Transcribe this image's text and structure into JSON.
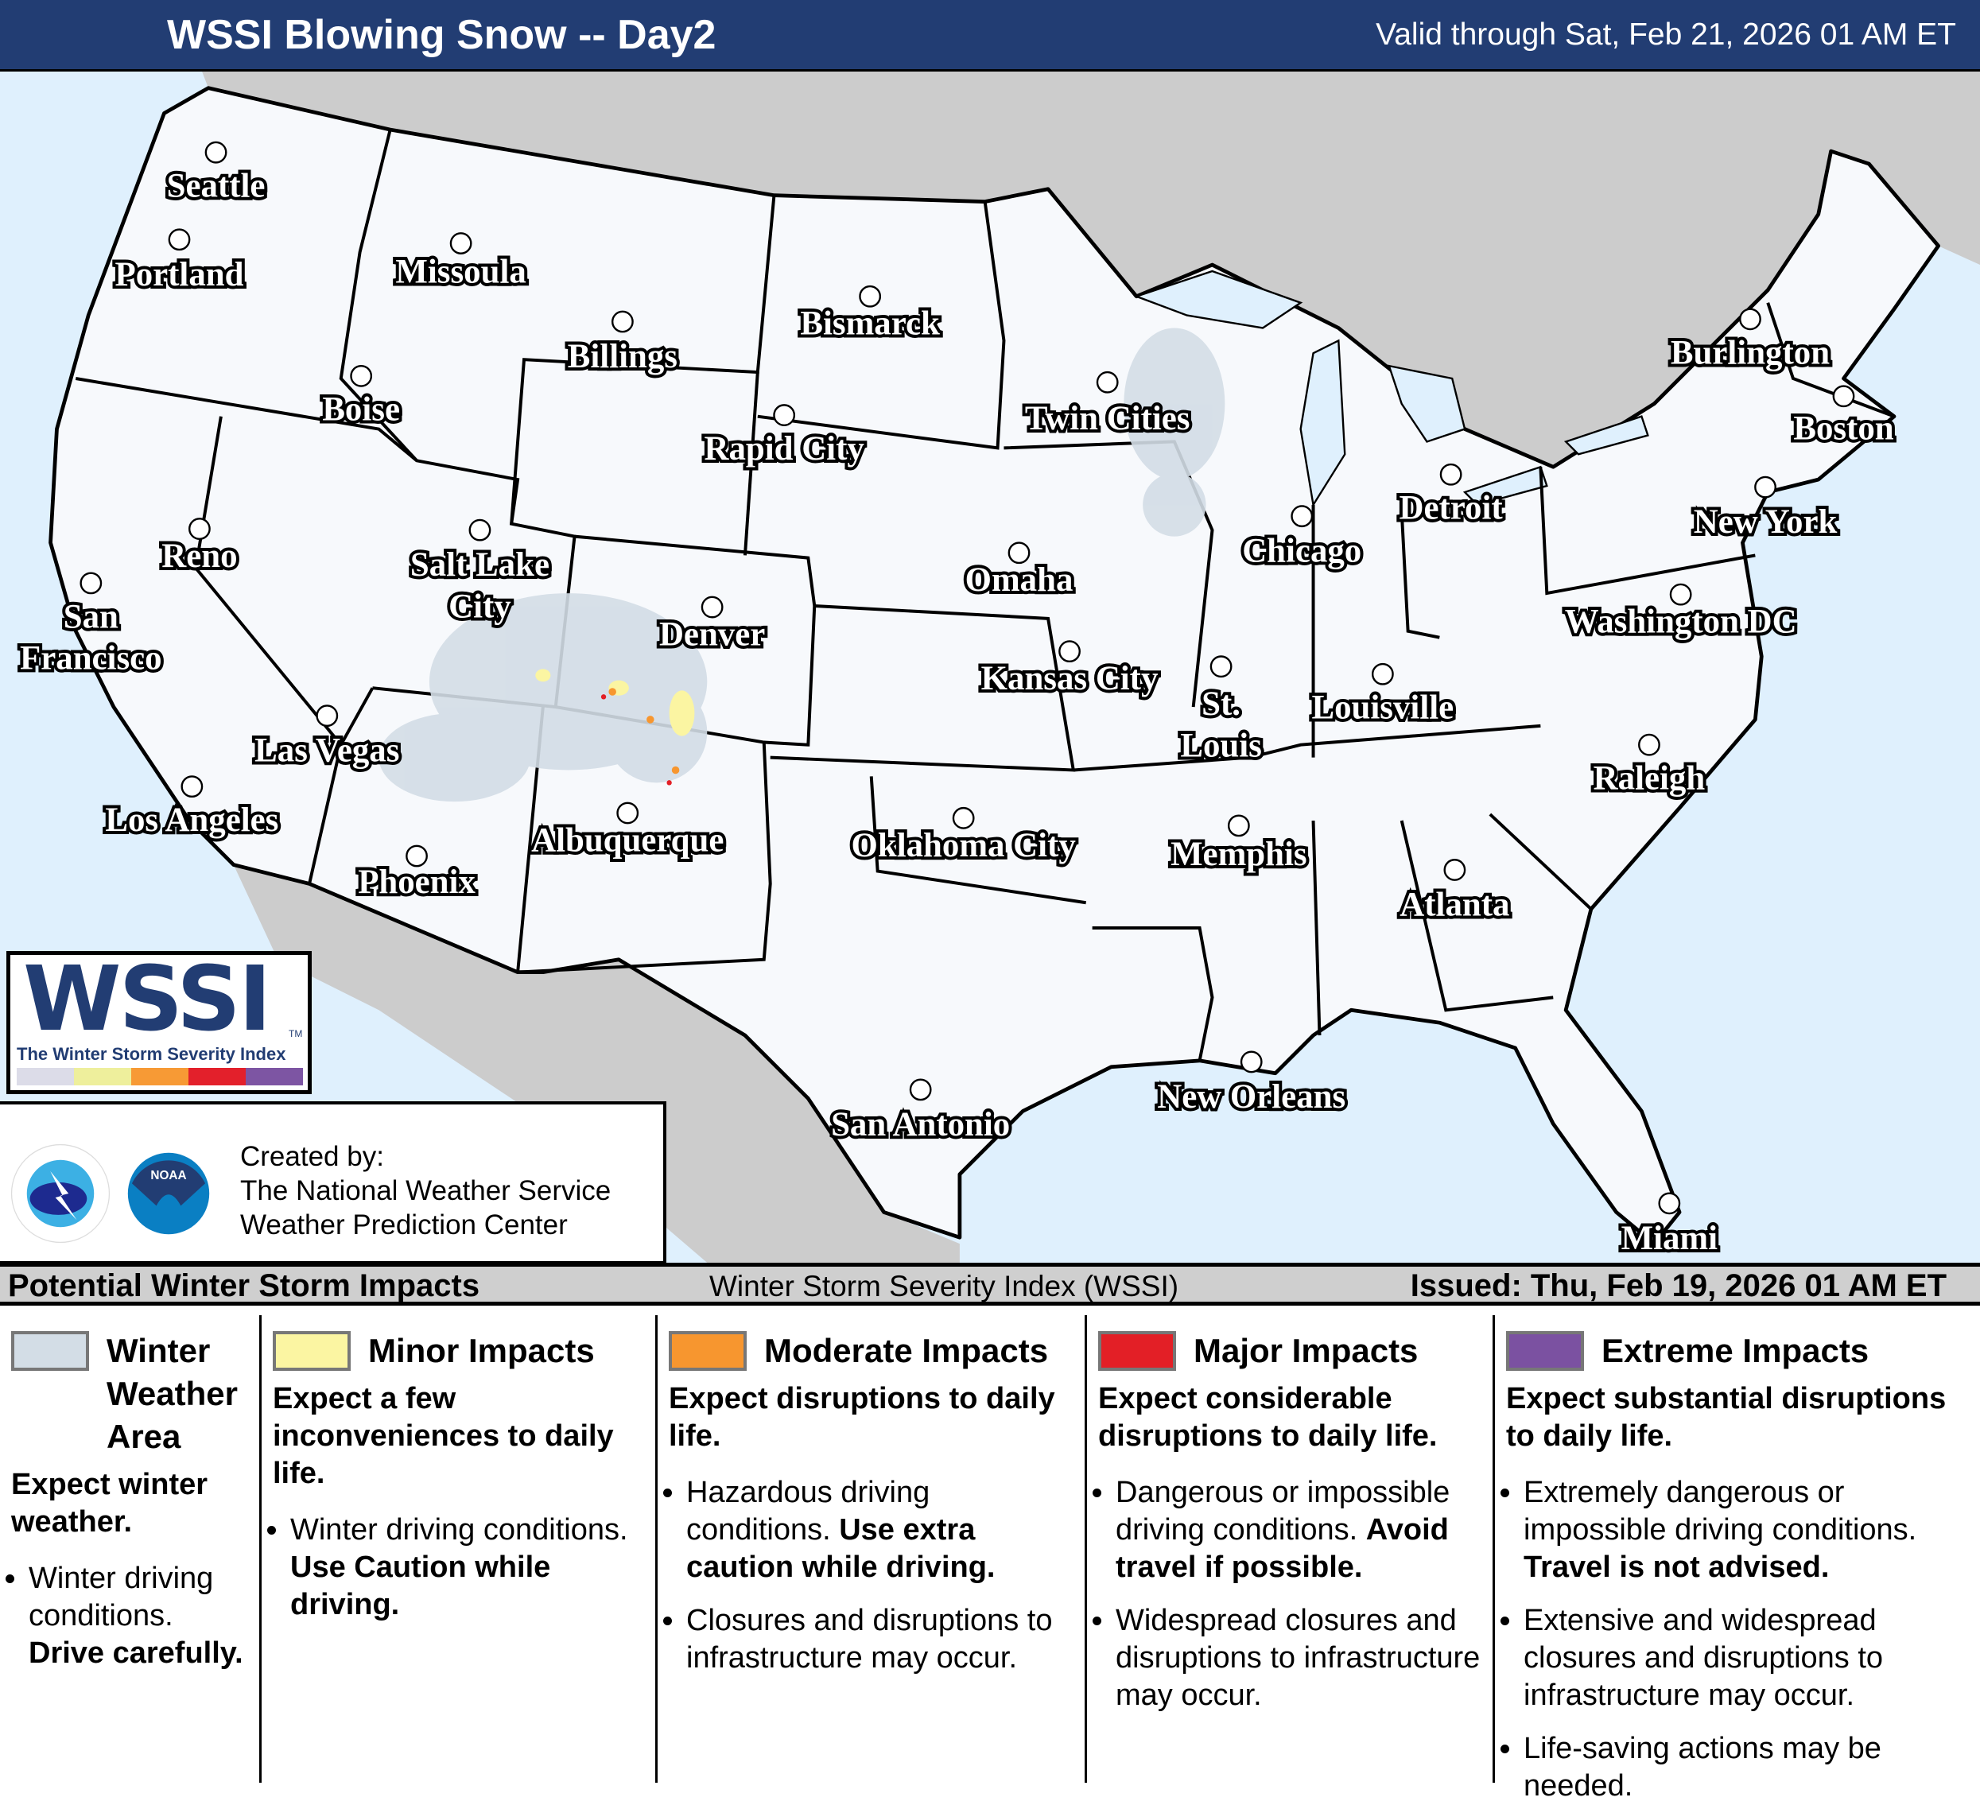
{
  "header": {
    "title": "WSSI Blowing Snow -- Day2",
    "valid": "Valid through Sat, Feb 21, 2026 01 AM ET"
  },
  "map": {
    "colors": {
      "water": "#dff0fd",
      "land_us": "#f7f9fc",
      "land_other": "#cccccc",
      "winter_area": "#d3dde6",
      "minor": "#fbf5a2",
      "moderate": "#f7962f",
      "major": "#e31f26",
      "extreme": "#7b51a1"
    },
    "cities": [
      {
        "name": "Seattle",
        "lines": [
          "Seattle"
        ]
      },
      {
        "name": "Portland",
        "lines": [
          "Portland"
        ]
      },
      {
        "name": "Missoula",
        "lines": [
          "Missoula"
        ]
      },
      {
        "name": "Billings",
        "lines": [
          "Billings"
        ]
      },
      {
        "name": "Bismarck",
        "lines": [
          "Bismarck"
        ]
      },
      {
        "name": "Boise",
        "lines": [
          "Boise"
        ]
      },
      {
        "name": "Rapid City",
        "lines": [
          "Rapid City"
        ]
      },
      {
        "name": "Twin Cities",
        "lines": [
          "Twin Cities"
        ]
      },
      {
        "name": "Burlington",
        "lines": [
          "Burlington"
        ]
      },
      {
        "name": "Boston",
        "lines": [
          "Boston"
        ]
      },
      {
        "name": "Reno",
        "lines": [
          "Reno"
        ]
      },
      {
        "name": "Salt Lake City",
        "lines": [
          "Salt Lake",
          "City"
        ]
      },
      {
        "name": "Omaha",
        "lines": [
          "Omaha"
        ]
      },
      {
        "name": "Chicago",
        "lines": [
          "Chicago"
        ]
      },
      {
        "name": "Detroit",
        "lines": [
          "Detroit"
        ]
      },
      {
        "name": "New York",
        "lines": [
          "New York"
        ]
      },
      {
        "name": "San Francisco",
        "lines": [
          "San",
          "Francisco"
        ]
      },
      {
        "name": "Denver",
        "lines": [
          "Denver"
        ]
      },
      {
        "name": "Washington DC",
        "lines": [
          "Washington DC"
        ]
      },
      {
        "name": "Kansas City",
        "lines": [
          "Kansas City"
        ]
      },
      {
        "name": "St. Louis",
        "lines": [
          "St.",
          "Louis"
        ]
      },
      {
        "name": "Louisville",
        "lines": [
          "Louisville"
        ]
      },
      {
        "name": "Las Vegas",
        "lines": [
          "Las Vegas"
        ]
      },
      {
        "name": "Raleigh",
        "lines": [
          "Raleigh"
        ]
      },
      {
        "name": "Los Angeles",
        "lines": [
          "Los Angeles"
        ]
      },
      {
        "name": "Albuquerque",
        "lines": [
          "Albuquerque"
        ]
      },
      {
        "name": "Oklahoma City",
        "lines": [
          "Oklahoma City"
        ]
      },
      {
        "name": "Memphis",
        "lines": [
          "Memphis"
        ]
      },
      {
        "name": "Phoenix",
        "lines": [
          "Phoenix"
        ]
      },
      {
        "name": "Atlanta",
        "lines": [
          "Atlanta"
        ]
      },
      {
        "name": "San Antonio",
        "lines": [
          "San Antonio"
        ]
      },
      {
        "name": "New Orleans",
        "lines": [
          "New Orleans"
        ]
      },
      {
        "name": "Miami",
        "lines": [
          "Miami"
        ]
      }
    ]
  },
  "logo": {
    "wssi": "WSSI",
    "tm": "TM",
    "tagline": "The Winter Storm Severity Index",
    "strip_colors": [
      "#dcdce8",
      "#eeef9c",
      "#f79a35",
      "#e3202b",
      "#7d55a3"
    ]
  },
  "credit": {
    "line1": "Created by:",
    "line2": "The National Weather Service",
    "line3": "Weather Prediction Center",
    "nws_logo_text": "NATIONAL WEATHER SERVICE",
    "noaa_logo_text": "NOAA"
  },
  "legend_bar": {
    "left": "Potential Winter Storm Impacts",
    "middle": "Winter Storm Severity Index (WSSI)",
    "right": "Issued: Thu, Feb 19, 2026 01 AM ET"
  },
  "legend": [
    {
      "title": "Winter Weather Area",
      "color": "#d3dde6",
      "summary": "Expect winter weather.",
      "bullets": [
        {
          "text": "Winter driving conditions.",
          "bold": "Drive carefully."
        }
      ]
    },
    {
      "title": "Minor Impacts",
      "color": "#fbf5a2",
      "summary": "Expect a few inconveniences to daily life.",
      "bullets": [
        {
          "text": "Winter driving conditions.",
          "bold": "Use Caution while driving."
        }
      ]
    },
    {
      "title": "Moderate Impacts",
      "color": "#f7962f",
      "summary": "Expect disruptions to daily life.",
      "bullets": [
        {
          "text": "Hazardous driving conditions.",
          "bold": "Use extra caution while driving."
        },
        {
          "text": "Closures and disruptions to infrastructure may occur.",
          "bold": ""
        }
      ]
    },
    {
      "title": "Major Impacts",
      "color": "#e31f26",
      "summary": "Expect considerable disruptions to daily life.",
      "bullets": [
        {
          "text": "Dangerous or impossible driving conditions.",
          "bold": "Avoid travel if possible."
        },
        {
          "text": "Widespread closures and disruptions to infrastructure may occur.",
          "bold": ""
        }
      ]
    },
    {
      "title": "Extreme Impacts",
      "color": "#7b51a1",
      "summary": "Expect substantial disruptions to daily life.",
      "bullets": [
        {
          "text": "Extremely dangerous or impossible driving conditions.",
          "bold": "Travel is not advised."
        },
        {
          "text": "Extensive and widespread closures and disruptions to infrastructure may occur.",
          "bold": ""
        },
        {
          "text": "Life-saving actions may be needed.",
          "bold": ""
        }
      ]
    }
  ]
}
